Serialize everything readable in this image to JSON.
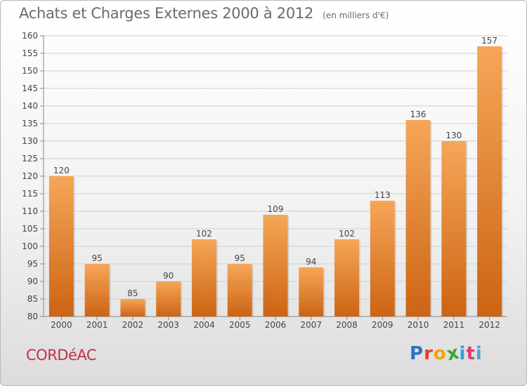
{
  "header": {
    "title": "Achats et Charges Externes 2000 à 2012",
    "subtitle": "(en milliers d'€)"
  },
  "footer": {
    "commune": "CORDéAC",
    "brand_letters": [
      "P",
      "r",
      "o",
      "x",
      "i",
      "t",
      "i"
    ]
  },
  "colors": {
    "bar_light": "#f6a658",
    "bar_dark": "#cc6414",
    "commune": "#c4314b",
    "brand": [
      "#2e6fc4",
      "#e63b2e",
      "#f2a400",
      "#3aa53a",
      "#2e9fd9",
      "#e23b7a",
      "#4aa3df"
    ]
  },
  "chart_data": {
    "type": "bar",
    "title": "Achats et Charges Externes 2000 à 2012",
    "subtitle": "(en milliers d'€)",
    "categories": [
      "2000",
      "2001",
      "2002",
      "2003",
      "2004",
      "2005",
      "2006",
      "2007",
      "2008",
      "2009",
      "2010",
      "2011",
      "2012"
    ],
    "values": [
      120,
      95,
      85,
      90,
      102,
      95,
      109,
      94,
      102,
      113,
      136,
      130,
      157
    ],
    "ylim": [
      80,
      160
    ],
    "yticks": [
      80,
      85,
      90,
      95,
      100,
      105,
      110,
      115,
      120,
      125,
      130,
      135,
      140,
      145,
      150,
      155,
      160
    ],
    "grid": true,
    "legend": "none"
  }
}
